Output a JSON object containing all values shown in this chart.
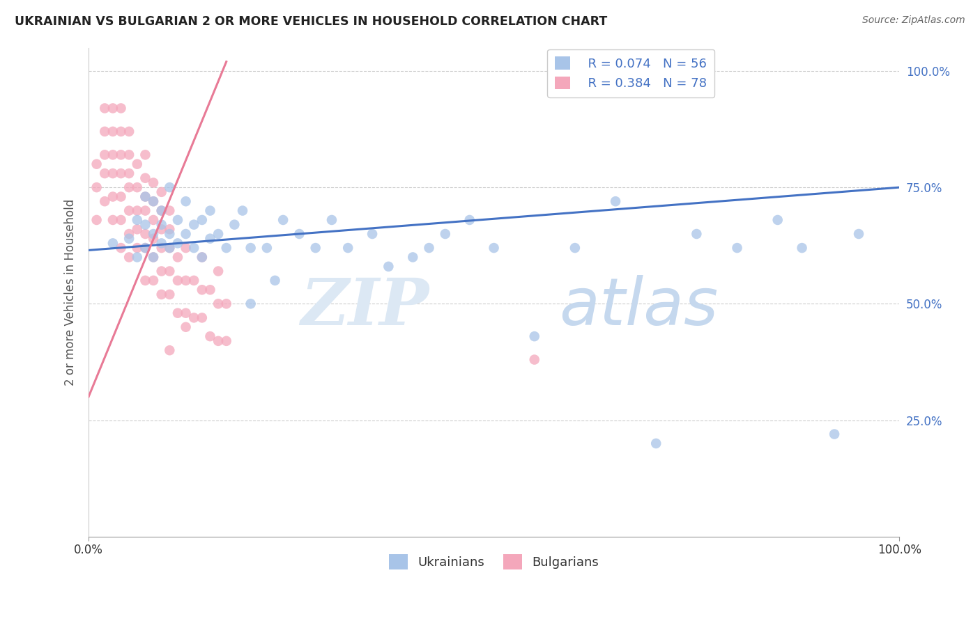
{
  "title": "UKRAINIAN VS BULGARIAN 2 OR MORE VEHICLES IN HOUSEHOLD CORRELATION CHART",
  "source": "Source: ZipAtlas.com",
  "ylabel": "2 or more Vehicles in Household",
  "ukrainian_color": "#a8c4e8",
  "bulgarian_color": "#f4a7bb",
  "ukrainian_line_color": "#4472c4",
  "bulgarian_line_color": "#e87a96",
  "watermark_zip": "ZIP",
  "watermark_atlas": "atlas",
  "watermark_color": "#dce8f4",
  "xlim": [
    0.0,
    1.0
  ],
  "ylim": [
    0.0,
    1.05
  ],
  "yticks": [
    0.25,
    0.5,
    0.75,
    1.0
  ],
  "ytick_labels": [
    "25.0%",
    "50.0%",
    "75.0%",
    "100.0%"
  ],
  "ukrainian_line_x": [
    0.0,
    1.0
  ],
  "ukrainian_line_y": [
    0.615,
    0.75
  ],
  "bulgarian_line_x": [
    0.0,
    0.17
  ],
  "bulgarian_line_y": [
    0.3,
    1.02
  ],
  "ukr_x": [
    0.03,
    0.05,
    0.06,
    0.06,
    0.07,
    0.07,
    0.07,
    0.08,
    0.08,
    0.08,
    0.09,
    0.09,
    0.09,
    0.1,
    0.1,
    0.1,
    0.11,
    0.11,
    0.12,
    0.12,
    0.13,
    0.13,
    0.14,
    0.14,
    0.15,
    0.15,
    0.16,
    0.17,
    0.18,
    0.19,
    0.2,
    0.2,
    0.22,
    0.23,
    0.24,
    0.26,
    0.28,
    0.3,
    0.32,
    0.35,
    0.37,
    0.4,
    0.42,
    0.44,
    0.47,
    0.5,
    0.55,
    0.6,
    0.65,
    0.7,
    0.75,
    0.8,
    0.85,
    0.88,
    0.92,
    0.95
  ],
  "ukr_y": [
    0.63,
    0.64,
    0.6,
    0.68,
    0.62,
    0.67,
    0.73,
    0.6,
    0.65,
    0.72,
    0.63,
    0.67,
    0.7,
    0.62,
    0.65,
    0.75,
    0.63,
    0.68,
    0.65,
    0.72,
    0.62,
    0.67,
    0.6,
    0.68,
    0.64,
    0.7,
    0.65,
    0.62,
    0.67,
    0.7,
    0.62,
    0.5,
    0.62,
    0.55,
    0.68,
    0.65,
    0.62,
    0.68,
    0.62,
    0.65,
    0.58,
    0.6,
    0.62,
    0.65,
    0.68,
    0.62,
    0.43,
    0.62,
    0.72,
    0.2,
    0.65,
    0.62,
    0.68,
    0.62,
    0.22,
    0.65
  ],
  "bul_x": [
    0.01,
    0.01,
    0.01,
    0.02,
    0.02,
    0.02,
    0.02,
    0.02,
    0.03,
    0.03,
    0.03,
    0.03,
    0.03,
    0.03,
    0.04,
    0.04,
    0.04,
    0.04,
    0.04,
    0.04,
    0.04,
    0.05,
    0.05,
    0.05,
    0.05,
    0.05,
    0.05,
    0.05,
    0.06,
    0.06,
    0.06,
    0.06,
    0.06,
    0.07,
    0.07,
    0.07,
    0.07,
    0.07,
    0.07,
    0.07,
    0.08,
    0.08,
    0.08,
    0.08,
    0.08,
    0.08,
    0.09,
    0.09,
    0.09,
    0.09,
    0.09,
    0.09,
    0.1,
    0.1,
    0.1,
    0.1,
    0.1,
    0.11,
    0.11,
    0.11,
    0.12,
    0.12,
    0.12,
    0.13,
    0.13,
    0.14,
    0.14,
    0.14,
    0.15,
    0.15,
    0.16,
    0.16,
    0.16,
    0.17,
    0.17,
    0.55,
    0.1,
    0.12
  ],
  "bul_y": [
    0.68,
    0.75,
    0.8,
    0.72,
    0.78,
    0.82,
    0.87,
    0.92,
    0.68,
    0.73,
    0.78,
    0.82,
    0.87,
    0.92,
    0.62,
    0.68,
    0.73,
    0.78,
    0.82,
    0.87,
    0.92,
    0.6,
    0.65,
    0.7,
    0.75,
    0.78,
    0.82,
    0.87,
    0.62,
    0.66,
    0.7,
    0.75,
    0.8,
    0.55,
    0.62,
    0.65,
    0.7,
    0.73,
    0.77,
    0.82,
    0.55,
    0.6,
    0.64,
    0.68,
    0.72,
    0.76,
    0.52,
    0.57,
    0.62,
    0.66,
    0.7,
    0.74,
    0.52,
    0.57,
    0.62,
    0.66,
    0.7,
    0.48,
    0.55,
    0.6,
    0.48,
    0.55,
    0.62,
    0.47,
    0.55,
    0.47,
    0.53,
    0.6,
    0.43,
    0.53,
    0.42,
    0.5,
    0.57,
    0.42,
    0.5,
    0.38,
    0.4,
    0.45
  ]
}
